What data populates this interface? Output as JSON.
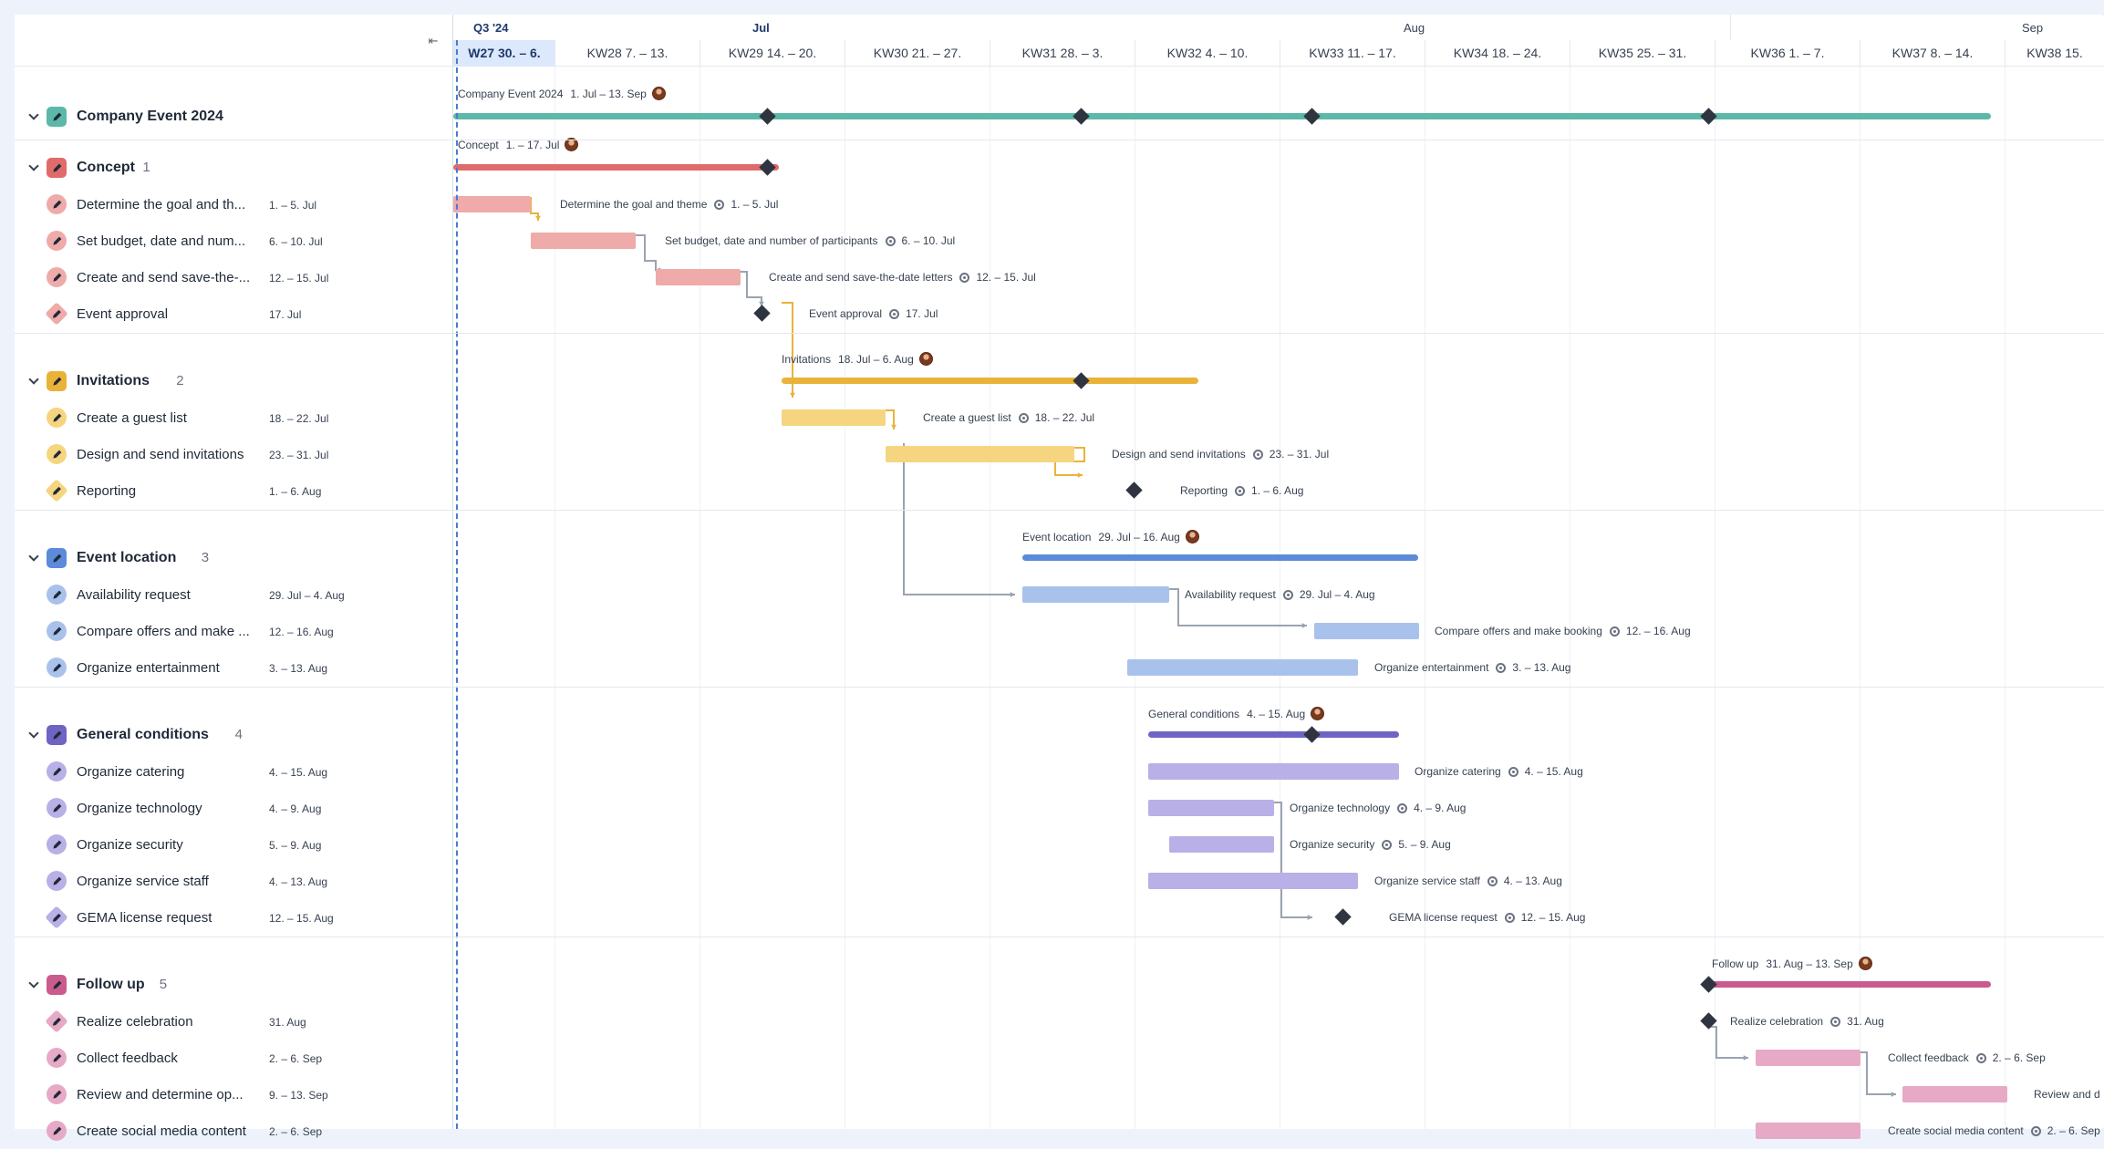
{
  "months": [
    {
      "label": "Q3 '24",
      "type": "quarter"
    },
    {
      "label": "Jul"
    },
    {
      "label": "Aug"
    },
    {
      "label": "Sep"
    }
  ],
  "weeks": [
    "W27 30. – 6.",
    "KW28 7. – 13.",
    "KW29 14. – 20.",
    "KW30 21. – 27.",
    "KW31 28. – 3.",
    "KW32 4. – 10.",
    "KW33 11. – 17.",
    "KW34 18. – 24.",
    "KW35 25. – 31.",
    "KW36 1. – 7.",
    "KW37 8. – 14.",
    "KW38 15."
  ],
  "current_week_index": 0,
  "groups": [
    {
      "name": "Company Event 2024",
      "count": "",
      "color": "#5cb8a8",
      "light": "#5cb8a8",
      "label": "Company Event 2024",
      "dates": "1. Jul – 13. Sep",
      "avatar": true,
      "top_level": true,
      "tasks": []
    },
    {
      "name": "Concept",
      "count": "1",
      "color": "#e06b6b",
      "light": "#efaaaa",
      "label": "Concept",
      "dates": "1. – 17. Jul",
      "avatar": true,
      "tasks": [
        {
          "name": "Determine the goal and th...",
          "full": "Determine the goal and theme",
          "dates": "1. – 5. Jul",
          "kind": "task"
        },
        {
          "name": "Set budget, date and num...",
          "full": "Set budget, date and number of participants",
          "dates": "6. – 10. Jul",
          "kind": "task"
        },
        {
          "name": "Create and send save-the-...",
          "full": "Create and send save-the-date letters",
          "dates": "12. – 15. Jul",
          "kind": "task"
        },
        {
          "name": "Event approval",
          "full": "Event approval",
          "dates": "17. Jul",
          "kind": "milestone"
        }
      ]
    },
    {
      "name": "Invitations",
      "count": "2",
      "color": "#e9b33a",
      "light": "#f5d57f",
      "label": "Invitations",
      "dates": "18. Jul – 6. Aug",
      "avatar": true,
      "tasks": [
        {
          "name": "Create a guest list",
          "full": "Create a guest list",
          "dates": "18. – 22. Jul",
          "kind": "task"
        },
        {
          "name": "Design and send invitations",
          "full": "Design and send invitations",
          "dates": "23. – 31. Jul",
          "kind": "task"
        },
        {
          "name": "Reporting",
          "full": "Reporting",
          "dates": "1. – 6. Aug",
          "kind": "milestone"
        }
      ]
    },
    {
      "name": "Event location",
      "count": "3",
      "color": "#5b8bd9",
      "light": "#a9c2ec",
      "label": "Event location",
      "dates": "29. Jul – 16. Aug",
      "avatar": true,
      "tasks": [
        {
          "name": "Availability request",
          "full": "Availability request",
          "dates": "29. Jul – 4. Aug",
          "kind": "task"
        },
        {
          "name": "Compare offers and make ...",
          "full": "Compare offers and make booking",
          "dates": "12. – 16. Aug",
          "kind": "task"
        },
        {
          "name": "Organize entertainment",
          "full": "Organize entertainment",
          "dates": "3. – 13. Aug",
          "kind": "task"
        }
      ]
    },
    {
      "name": "General conditions",
      "count": "4",
      "color": "#6f63c4",
      "light": "#b8b0e6",
      "label": "General conditions",
      "dates": "4. – 15. Aug",
      "avatar": true,
      "tasks": [
        {
          "name": "Organize catering",
          "full": "Organize catering",
          "dates": "4. – 15. Aug",
          "kind": "task"
        },
        {
          "name": "Organize technology",
          "full": "Organize technology",
          "dates": "4. – 9. Aug",
          "kind": "task"
        },
        {
          "name": "Organize security",
          "full": "Organize security",
          "dates": "5. – 9. Aug",
          "kind": "task"
        },
        {
          "name": "Organize service staff",
          "full": "Organize service staff",
          "dates": "4. – 13. Aug",
          "kind": "task"
        },
        {
          "name": "GEMA license request",
          "full": "GEMA license request",
          "dates": "12. – 15. Aug",
          "kind": "milestone"
        }
      ]
    },
    {
      "name": "Follow up",
      "count": "5",
      "color": "#c95b8d",
      "light": "#e6a9c6",
      "label": "Follow up",
      "dates": "31. Aug – 13. Sep",
      "avatar": true,
      "tasks": [
        {
          "name": "Realize celebration",
          "full": "Realize celebration",
          "dates": "31. Aug",
          "kind": "milestone"
        },
        {
          "name": "Collect feedback",
          "full": "Collect feedback",
          "dates": "2. – 6. Sep",
          "kind": "task"
        },
        {
          "name": "Review and determine op...",
          "full": "Review and d",
          "dates": "9. – 13. Sep",
          "kind": "task"
        },
        {
          "name": "Create social media content",
          "full": "Create social media content",
          "dates": "2. – 6. Sep",
          "kind": "task"
        }
      ]
    }
  ]
}
